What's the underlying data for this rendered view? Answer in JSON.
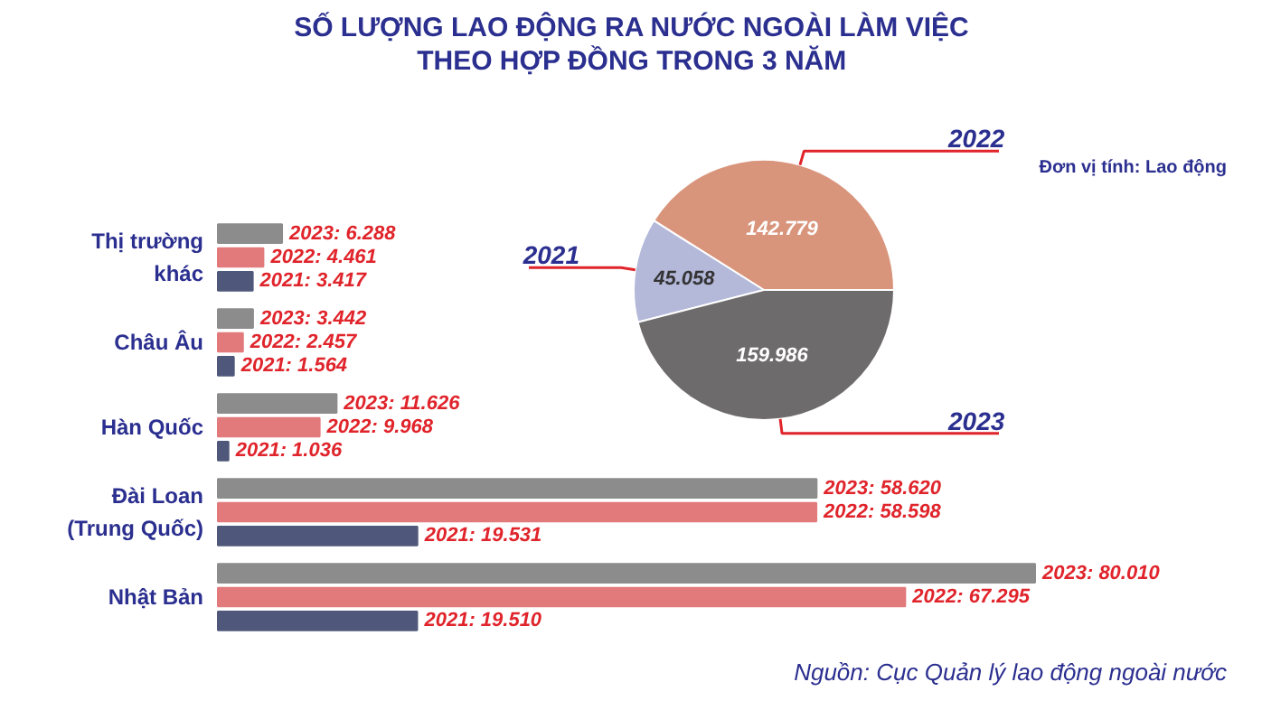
{
  "chart_data": [
    {
      "type": "bar",
      "orientation": "horizontal",
      "title": "SỐ LƯỢNG LAO ĐỘNG RA NƯỚC NGOÀI LÀM VIỆC\nTHEO HỢP ĐỒNG TRONG 3 NĂM",
      "categories": [
        "Thị trường\nkhác",
        "Châu Âu",
        "Hàn Quốc",
        "Đài Loan\n(Trung Quốc)",
        "Nhật Bản"
      ],
      "series": [
        {
          "color": "#8c8c8c",
          "values": [
            6288,
            3442,
            11626,
            58620,
            80010
          ],
          "value_labels": [
            "2023: 6.288",
            "2023: 3.442",
            "2023: 11.626",
            "2023: 58.620",
            "2023: 80.010"
          ]
        },
        {
          "color": "#e2797b",
          "values": [
            4461,
            2457,
            9968,
            58598,
            67295
          ],
          "value_labels": [
            "2022: 4.461",
            "2022: 2.457",
            "2022: 9.968",
            "2022: 58.598",
            "2022: 67.295"
          ]
        },
        {
          "color": "#4f587a",
          "values": [
            3417,
            1564,
            1036,
            19531,
            19510
          ],
          "value_labels": [
            "2021: 3.417",
            "2021: 1.564",
            "2021: 1.036",
            "2021: 19.531",
            "2021: 19.510"
          ]
        }
      ],
      "annotations": [
        "Đơn vị tính: Lao động",
        "Nguồn: Cục Quản lý lao động ngoài nước"
      ]
    },
    {
      "type": "pie",
      "categories": [
        "2022",
        "2021",
        "2023"
      ],
      "values": [
        142779,
        45058,
        159986
      ],
      "colors": [
        "#d9957c",
        "#b4b9da",
        "#6e6b6c"
      ],
      "value_labels": [
        "142.779",
        "45.058",
        "159.986"
      ]
    }
  ]
}
